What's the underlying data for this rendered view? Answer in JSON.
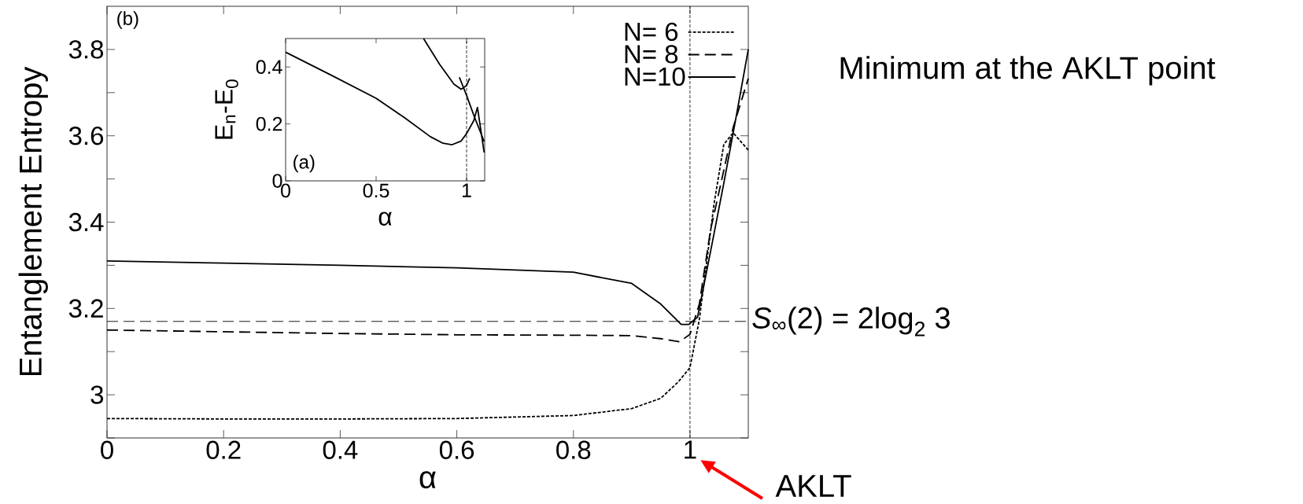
{
  "chart_data": [
    {
      "type": "line",
      "xlabel": "α",
      "ylabel": "Entanglement Entropy",
      "xlim": [
        0,
        1.1
      ],
      "ylim": [
        2.9,
        3.9
      ],
      "xticks": [
        0,
        0.2,
        0.4,
        0.6,
        0.8,
        1
      ],
      "yticks": [
        {
          "value": 2.9,
          "label": null
        },
        3,
        {
          "value": 3.1,
          "label": null
        },
        3.2,
        {
          "value": 3.3,
          "label": null
        },
        3.4,
        {
          "value": 3.5,
          "label": null
        },
        3.6,
        {
          "value": 3.7,
          "label": null
        },
        3.8
      ],
      "legend": "top right",
      "series": [
        {
          "name": "N= 6",
          "color": "#000000",
          "line_style": "dotted",
          "x": [
            0,
            0.2,
            0.4,
            0.6,
            0.8,
            0.9,
            0.95,
            0.98,
            1.0,
            1.016,
            1.03,
            1.041,
            1.058,
            1.074,
            1.1
          ],
          "values": [
            2.945,
            2.944,
            2.944,
            2.945,
            2.952,
            2.968,
            2.992,
            3.03,
            3.063,
            3.174,
            3.322,
            3.44,
            3.58,
            3.607,
            3.567
          ]
        },
        {
          "name": "N= 8",
          "color": "#000000",
          "line_style": "dashed",
          "x": [
            0,
            0.2,
            0.4,
            0.6,
            0.8,
            0.9,
            0.95,
            0.982,
            1.0,
            1.016,
            1.035,
            1.058,
            1.074,
            1.1
          ],
          "values": [
            3.15,
            3.146,
            3.142,
            3.139,
            3.138,
            3.137,
            3.13,
            3.123,
            3.14,
            3.21,
            3.38,
            3.52,
            3.619,
            3.733
          ]
        },
        {
          "name": "N=10",
          "color": "#000000",
          "line_style": "solid",
          "x": [
            0,
            0.2,
            0.4,
            0.6,
            0.8,
            0.9,
            0.95,
            0.985,
            0.998,
            1.013,
            1.035,
            1.058,
            1.08,
            1.1
          ],
          "values": [
            3.31,
            3.305,
            3.3,
            3.294,
            3.284,
            3.258,
            3.21,
            3.163,
            3.163,
            3.18,
            3.33,
            3.49,
            3.65,
            3.8
          ]
        }
      ],
      "ref_lines": [
        {
          "axis": "y",
          "value": 3.17,
          "label": "*S*$_{∞}$(2) = 2log$_{2}$ 3",
          "line_style": "dashed"
        },
        {
          "axis": "x",
          "value": 1,
          "line_style": "dotted"
        }
      ],
      "annotations": [
        "(b)",
        "Minimum at the AKLT point",
        "AKLT"
      ]
    },
    {
      "type": "line",
      "xlabel": "α",
      "ylabel": "E$_{n}$-E$_{0}$",
      "xlim": [
        0,
        1.1
      ],
      "ylim": [
        0,
        0.5
      ],
      "xticks": [
        0,
        0.5,
        1
      ],
      "yticks": [
        0,
        0.2,
        0.4
      ],
      "series": [
        {
          "color": "#000000",
          "x": [
            0,
            0.25,
            0.5,
            0.65,
            0.8,
            0.87,
            0.92,
            0.97,
            1.0,
            1.04,
            1.06,
            1.097
          ],
          "values": [
            0.452,
            0.372,
            0.29,
            0.225,
            0.155,
            0.132,
            0.127,
            0.14,
            0.166,
            0.212,
            0.258,
            0.1
          ]
        },
        {
          "color": "#000000",
          "x": [
            0.762,
            0.85,
            0.93,
            0.97,
            1.0,
            1.017
          ],
          "values": [
            0.5,
            0.41,
            0.34,
            0.322,
            0.335,
            0.36
          ]
        },
        {
          "color": "#000000",
          "x": [
            0.96,
            1.0,
            1.04,
            1.097
          ],
          "values": [
            0.364,
            0.3,
            0.23,
            0.138
          ]
        }
      ],
      "ref_lines": [
        {
          "axis": "x",
          "value": 1,
          "line_style": "dotted"
        }
      ],
      "annotations": [
        "(a)"
      ]
    }
  ]
}
